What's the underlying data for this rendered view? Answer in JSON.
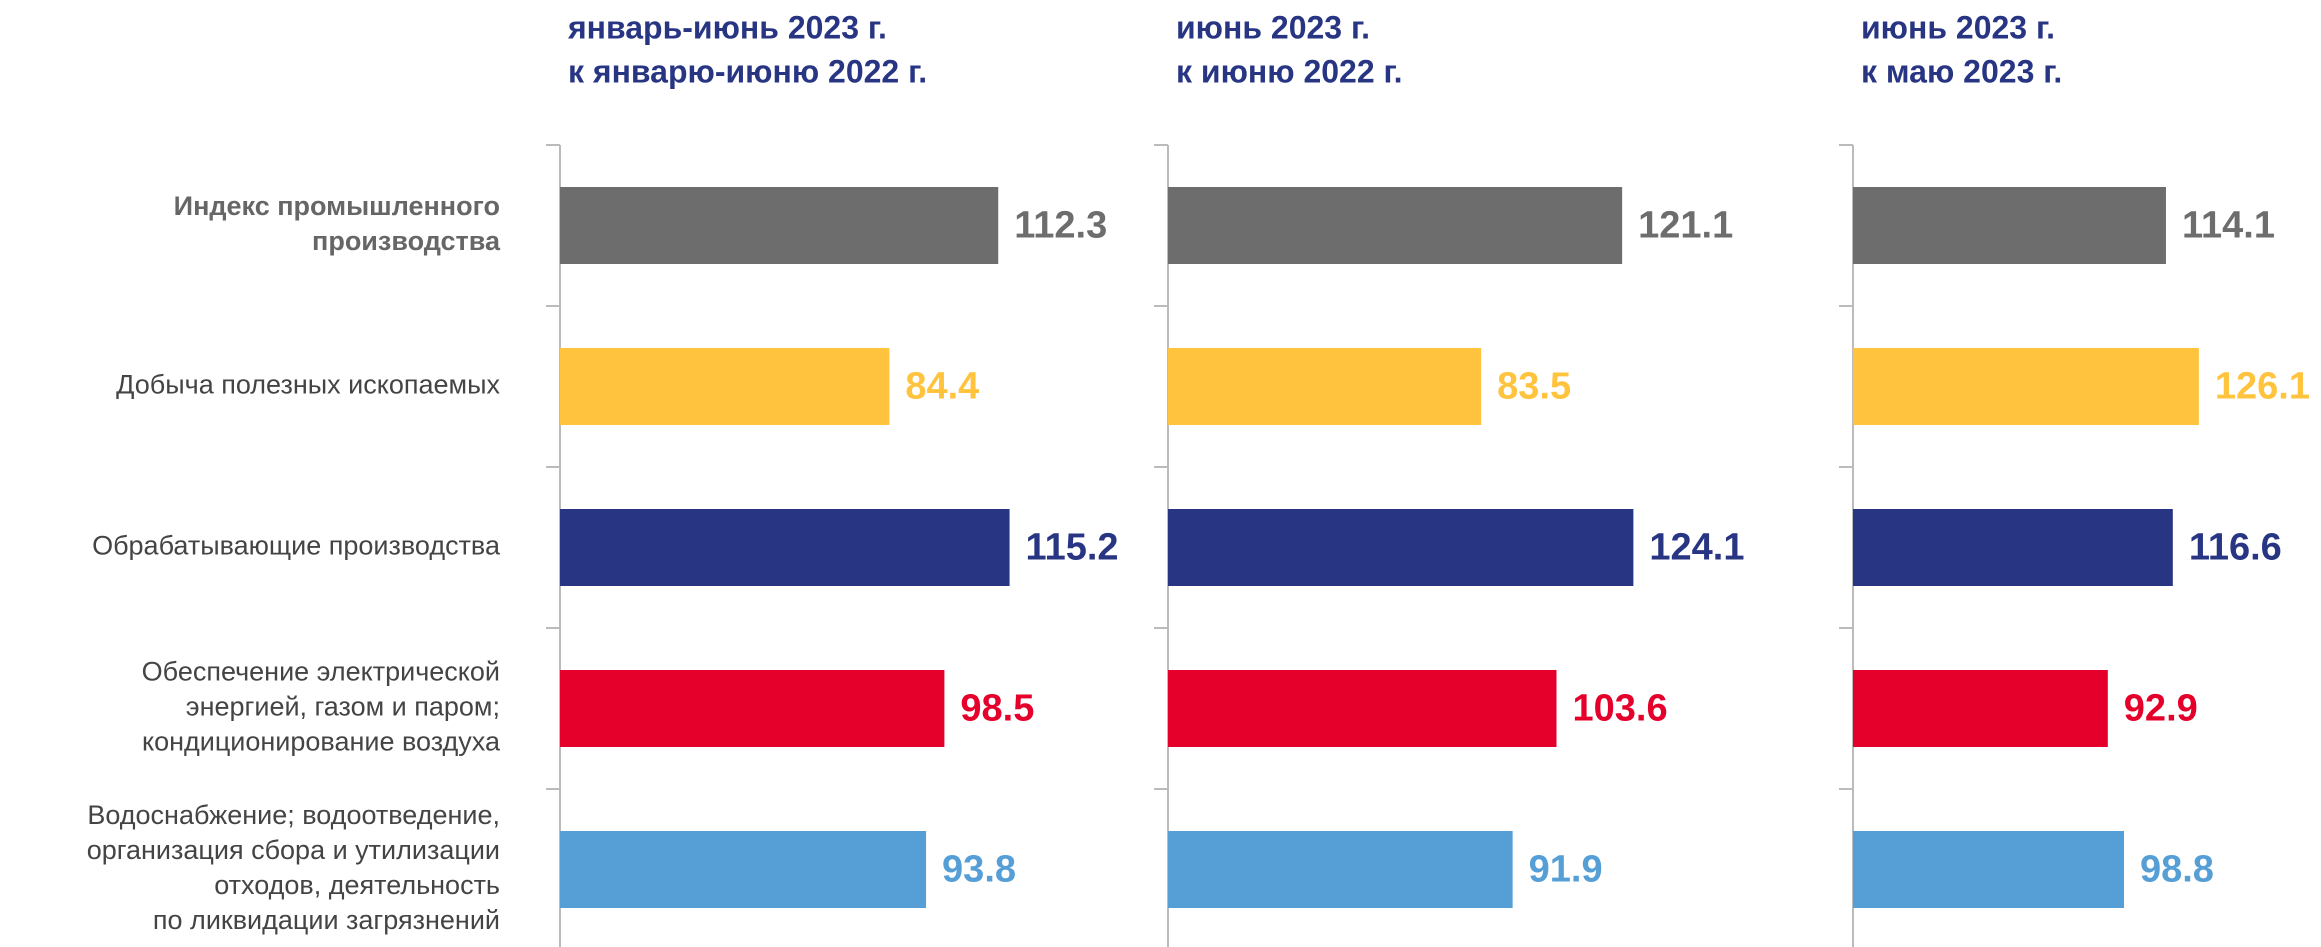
{
  "categories": [
    [
      "Индекс промышленного",
      "производства"
    ],
    [
      "Добыча полезных ископаемых"
    ],
    [
      "Обрабатывающие производства"
    ],
    [
      "Обеспечение электрической",
      "энергией, газом и паром;",
      "кондиционирование воздуха"
    ],
    [
      "Водоснабжение; водоотведение,",
      "организация сбора и утилизации",
      "отходов, деятельность",
      "по ликвидации загрязнений"
    ]
  ],
  "colors": [
    "#6d6d6d",
    "#ffc33d",
    "#283583",
    "#e4002b",
    "#559fd6"
  ],
  "chart_data": [
    {
      "type": "bar",
      "orientation": "horizontal",
      "title": [
        "январь-июнь 2023 г.",
        "к январю-июню 2022 г."
      ],
      "values": [
        112.3,
        84.4,
        115.2,
        98.5,
        93.8
      ],
      "xlim": [
        0,
        123
      ]
    },
    {
      "type": "bar",
      "orientation": "horizontal",
      "title": [
        "июнь 2023 г.",
        "к июню 2022 г."
      ],
      "values": [
        121.1,
        83.5,
        124.1,
        103.6,
        91.9
      ],
      "xlim": [
        0,
        128
      ]
    },
    {
      "type": "bar",
      "orientation": "horizontal",
      "title": [
        "июнь 2023 г.",
        "к маю 2023 г."
      ],
      "values": [
        114.1,
        126.1,
        116.6,
        92.9,
        98.8
      ],
      "xlim": [
        0,
        175
      ]
    }
  ]
}
